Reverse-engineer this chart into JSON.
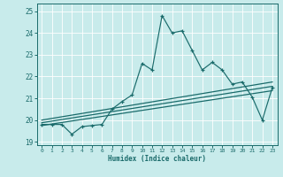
{
  "xlabel": "Humidex (Indice chaleur)",
  "bg_color": "#c8ebeb",
  "grid_color": "#ffffff",
  "line_color": "#1a6b6b",
  "xlim": [
    -0.5,
    23.5
  ],
  "ylim": [
    18.85,
    25.35
  ],
  "yticks": [
    19,
    20,
    21,
    22,
    23,
    24,
    25
  ],
  "xticks": [
    0,
    1,
    2,
    3,
    4,
    5,
    6,
    7,
    8,
    9,
    10,
    11,
    12,
    13,
    14,
    15,
    16,
    17,
    18,
    19,
    20,
    21,
    22,
    23
  ],
  "main_x": [
    0,
    1,
    2,
    3,
    4,
    5,
    6,
    7,
    8,
    9,
    10,
    11,
    12,
    13,
    14,
    15,
    16,
    17,
    18,
    19,
    20,
    21,
    22,
    23
  ],
  "main_y": [
    19.8,
    19.8,
    19.8,
    19.35,
    19.7,
    19.75,
    19.8,
    20.5,
    20.85,
    21.15,
    22.6,
    22.3,
    24.8,
    24.0,
    24.1,
    23.2,
    22.3,
    22.65,
    22.3,
    21.65,
    21.75,
    21.05,
    20.0,
    21.5
  ],
  "line1_x": [
    0,
    23
  ],
  "line1_y": [
    19.75,
    21.35
  ],
  "line2_x": [
    0,
    23
  ],
  "line2_y": [
    19.88,
    21.55
  ],
  "line3_x": [
    0,
    23
  ],
  "line3_y": [
    20.0,
    21.75
  ]
}
